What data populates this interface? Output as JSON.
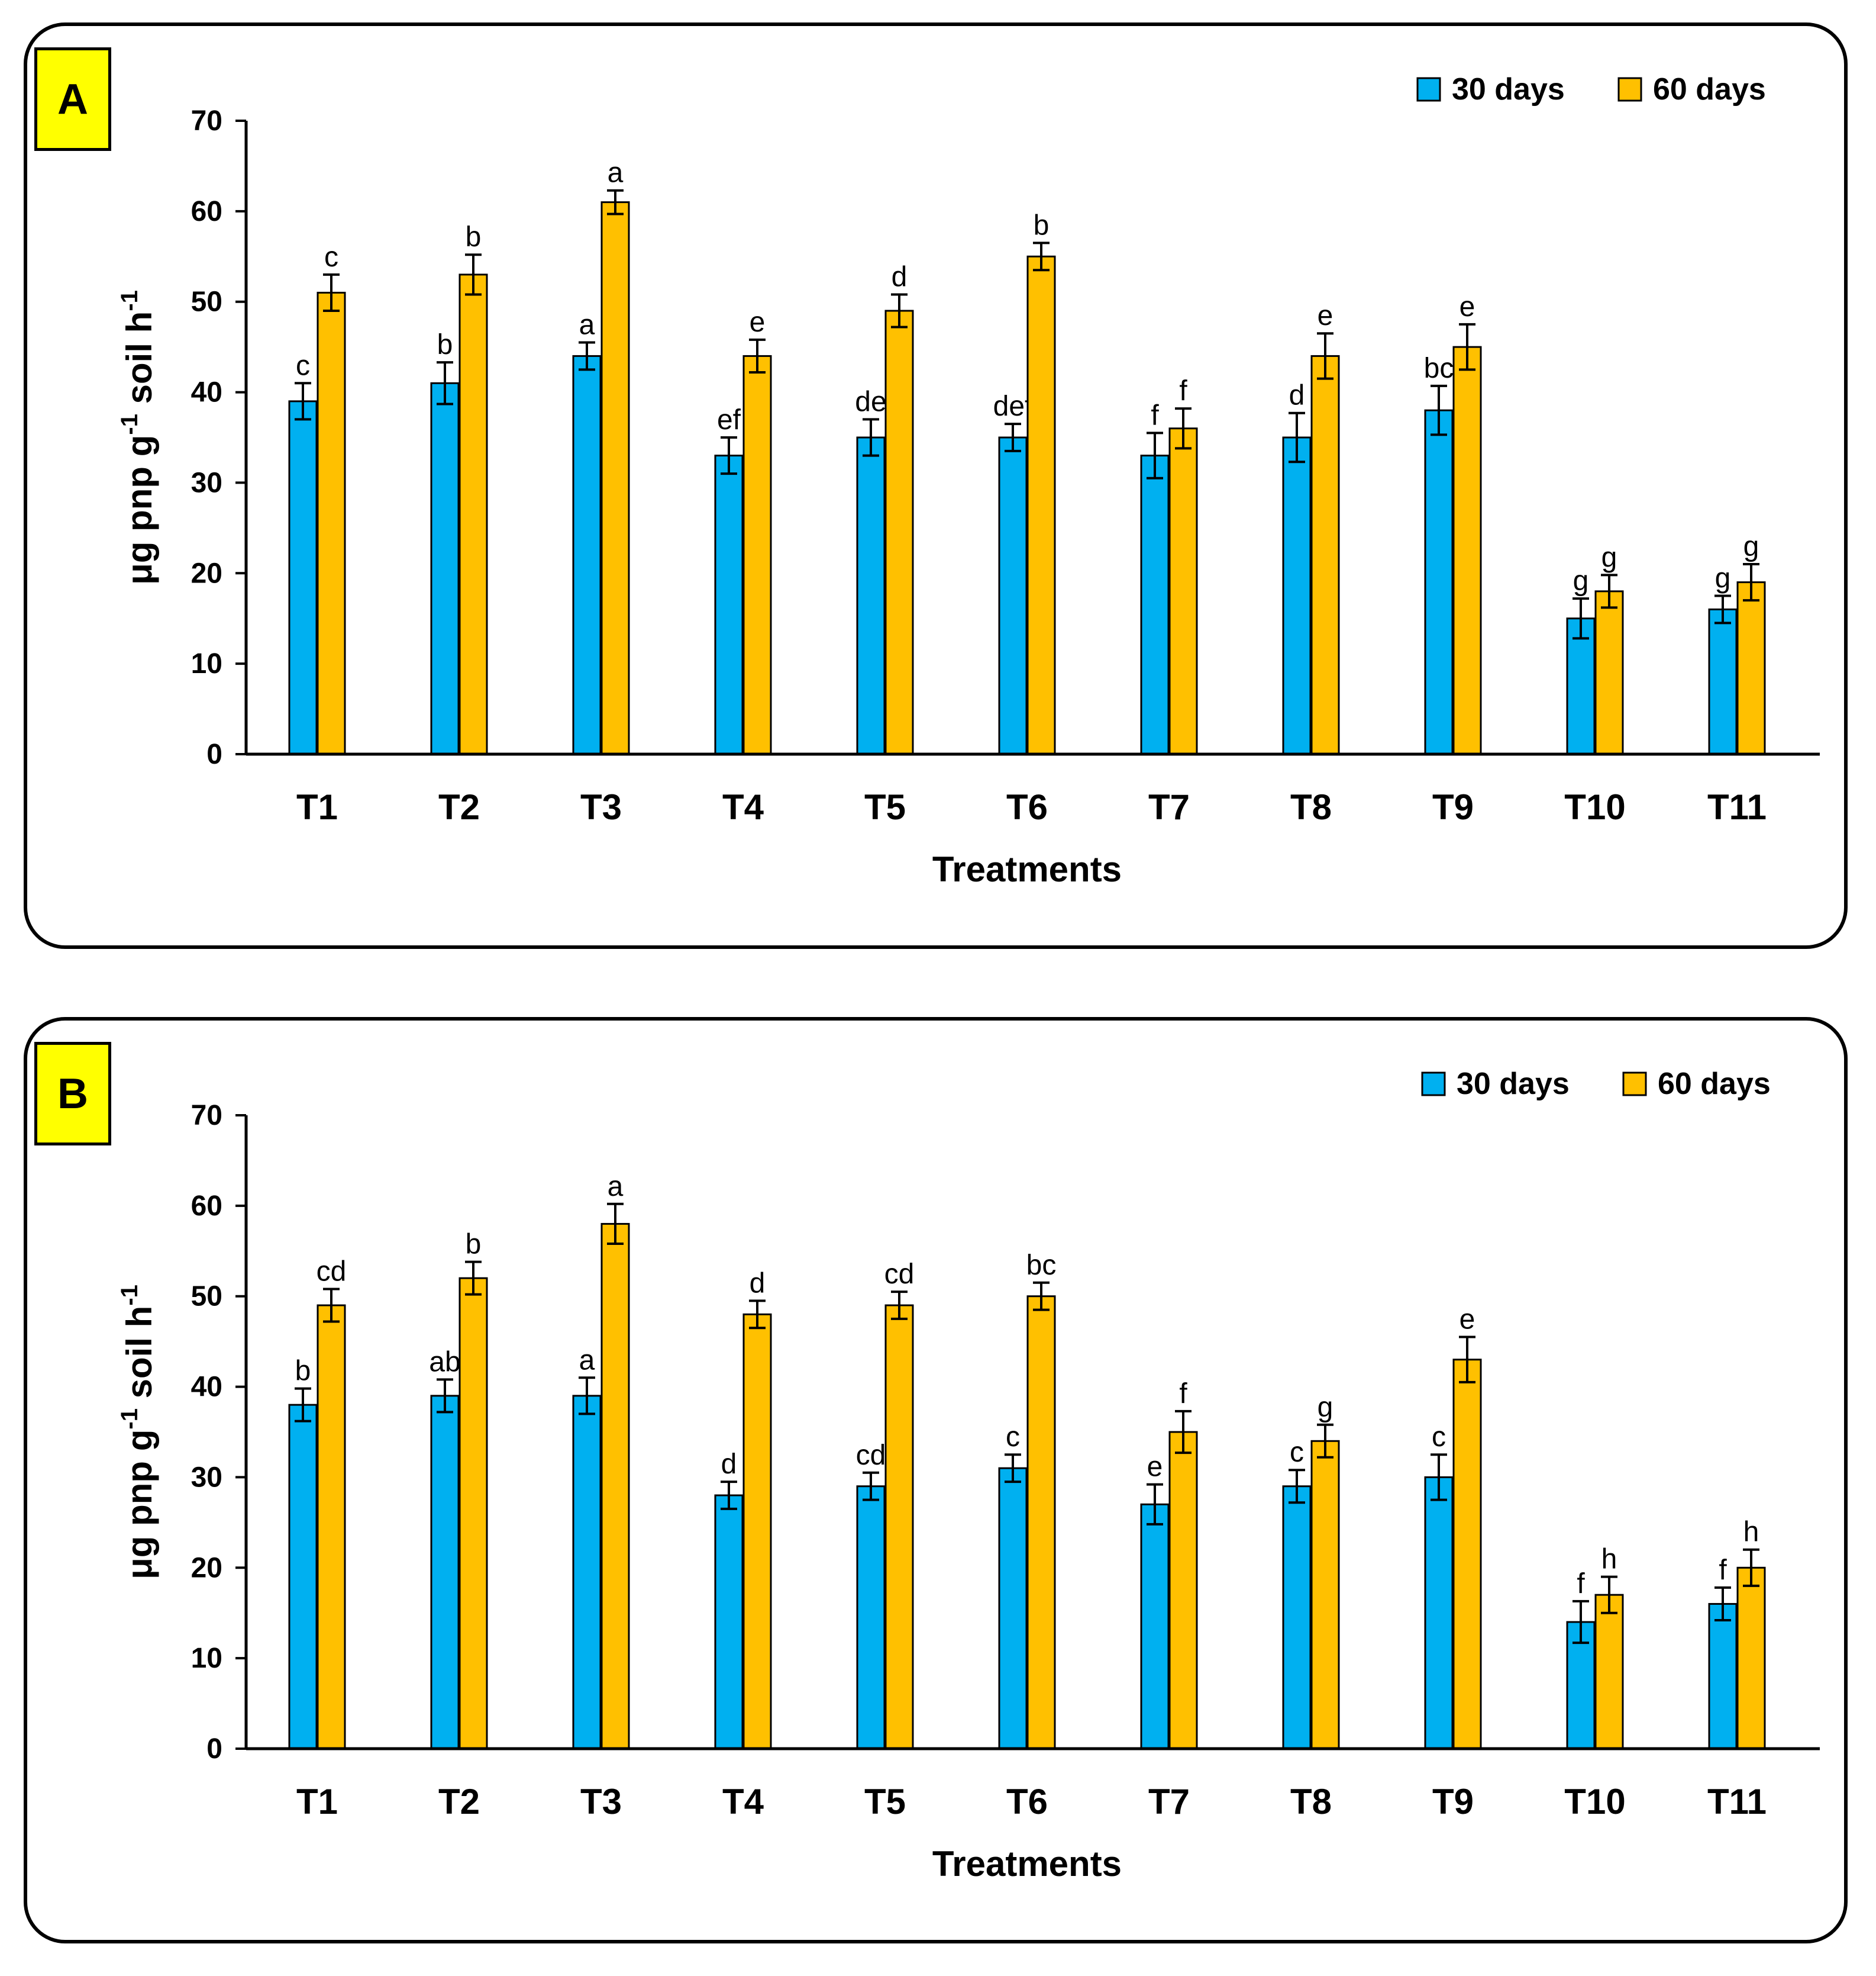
{
  "chart_data": [
    {
      "type": "bar",
      "panel_label": "A",
      "xlabel": "Treatments",
      "ylabel": "μg pnp g-1 soil h-1",
      "ylabel_parts": {
        "prefix": "μg pnp g",
        "sup1": "-1",
        "middle": " soil h",
        "sup2": "-1"
      },
      "ylim": [
        0,
        70
      ],
      "yticks": [
        0,
        10,
        20,
        30,
        40,
        50,
        60,
        70
      ],
      "legend_position": "top-right",
      "categories": [
        "T1",
        "T2",
        "T3",
        "T4",
        "T5",
        "T6",
        "T7",
        "T8",
        "T9",
        "T10",
        "T11"
      ],
      "series": [
        {
          "name": "30 days",
          "color": "#00b0f0",
          "values": [
            39,
            41,
            44,
            33,
            35,
            35,
            33,
            35,
            38,
            15,
            16
          ],
          "errors": [
            2,
            2.3,
            1.5,
            2,
            2,
            1.5,
            2.5,
            2.7,
            2.7,
            2.2,
            1.5
          ],
          "labels": [
            "c",
            "b",
            "a",
            "ef",
            "de",
            "def",
            "f",
            "d",
            "bc",
            "g",
            "g"
          ]
        },
        {
          "name": "60 days",
          "color": "#ffc000",
          "values": [
            51,
            53,
            61,
            44,
            49,
            55,
            36,
            44,
            45,
            18,
            19
          ],
          "errors": [
            2,
            2.2,
            1.3,
            1.8,
            1.8,
            1.5,
            2.2,
            2.5,
            2.5,
            1.8,
            2
          ],
          "labels": [
            "c",
            "b",
            "a",
            "e",
            "d",
            "b",
            "f",
            "e",
            "e",
            "g",
            "g"
          ]
        }
      ]
    },
    {
      "type": "bar",
      "panel_label": "B",
      "xlabel": "Treatments",
      "ylabel": "μg pnp g-1 soil h-1",
      "ylabel_parts": {
        "prefix": "μg pnp g",
        "sup1": "-1",
        "middle": " soil h",
        "sup2": "-1"
      },
      "ylim": [
        0,
        70
      ],
      "yticks": [
        0,
        10,
        20,
        30,
        40,
        50,
        60,
        70
      ],
      "legend_position": "top-right",
      "categories": [
        "T1",
        "T2",
        "T3",
        "T4",
        "T5",
        "T6",
        "T7",
        "T8",
        "T9",
        "T10",
        "T11"
      ],
      "series": [
        {
          "name": "30 days",
          "color": "#00b0f0",
          "values": [
            38,
            39,
            39,
            28,
            29,
            31,
            27,
            29,
            30,
            14,
            16
          ],
          "errors": [
            1.8,
            1.8,
            2,
            1.5,
            1.5,
            1.5,
            2.2,
            1.8,
            2.5,
            2.3,
            1.8
          ],
          "labels": [
            "b",
            "ab",
            "a",
            "d",
            "cd",
            "c",
            "e",
            "c",
            "c",
            "f",
            "f"
          ]
        },
        {
          "name": "60 days",
          "color": "#ffc000",
          "values": [
            49,
            52,
            58,
            48,
            49,
            50,
            35,
            34,
            43,
            17,
            20
          ],
          "errors": [
            1.8,
            1.8,
            2.2,
            1.5,
            1.5,
            1.5,
            2.3,
            1.8,
            2.5,
            2,
            2
          ],
          "labels": [
            "cd",
            "b",
            "a",
            "d",
            "cd",
            "bc",
            "f",
            "g",
            "e",
            "h",
            "h"
          ]
        }
      ]
    }
  ]
}
